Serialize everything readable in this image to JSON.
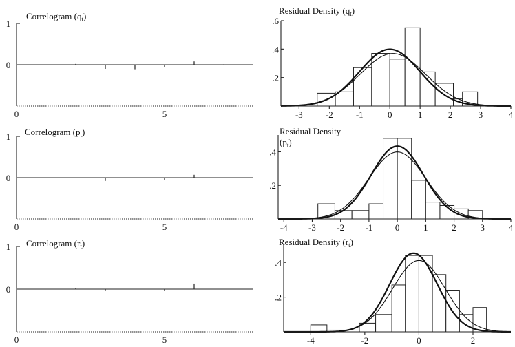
{
  "chart_data": [
    {
      "type": "bar",
      "title_main": "Correlogram (q",
      "title_sub": "t",
      "title_tail": ")",
      "xlim": [
        0,
        8
      ],
      "ylim": [
        -1,
        1
      ],
      "xticks": [
        "0",
        "5"
      ],
      "yticks": [
        "1",
        "0"
      ],
      "lags": [
        1,
        2,
        3,
        4,
        5,
        6,
        7,
        8
      ],
      "values": [
        0.0,
        0.02,
        -0.1,
        -0.11,
        -0.06,
        0.08,
        0.01,
        0.0
      ]
    },
    {
      "type": "line",
      "title_main": "Residual Density (q",
      "title_sub": "t",
      "title_tail": ")",
      "xlim": [
        -3.6,
        4
      ],
      "ylim": [
        0,
        0.6
      ],
      "xticks": [
        "-3",
        "-2",
        "-1",
        "0",
        "1",
        "2",
        "3",
        "4"
      ],
      "yticks": [
        ".6",
        ".4",
        ".2"
      ],
      "bins": [
        {
          "x0": -2.4,
          "x1": -1.8,
          "v": 0.09
        },
        {
          "x0": -1.8,
          "x1": -1.2,
          "v": 0.1
        },
        {
          "x0": -1.2,
          "x1": -0.6,
          "v": 0.27
        },
        {
          "x0": -0.6,
          "x1": 0.0,
          "v": 0.37
        },
        {
          "x0": 0.0,
          "x1": 0.5,
          "v": 0.33
        },
        {
          "x0": 0.5,
          "x1": 1.0,
          "v": 0.55
        },
        {
          "x0": 1.0,
          "x1": 1.5,
          "v": 0.24
        },
        {
          "x0": 1.5,
          "x1": 2.1,
          "v": 0.16
        },
        {
          "x0": 2.1,
          "x1": 2.4,
          "v": 0.05
        },
        {
          "x0": 2.4,
          "x1": 2.9,
          "v": 0.1
        }
      ],
      "curves": [
        {
          "mu": 0.0,
          "sigma": 1.0,
          "scale": 1.0
        },
        {
          "mu": 0.1,
          "sigma": 1.08,
          "scale": 1.0
        }
      ]
    },
    {
      "type": "bar",
      "title_main": "Correlogram (p",
      "title_sub": "t",
      "title_tail": ")",
      "xlim": [
        0,
        8
      ],
      "ylim": [
        -1,
        1
      ],
      "xticks": [
        "0",
        "5"
      ],
      "yticks": [
        "1",
        "0"
      ],
      "lags": [
        1,
        2,
        3,
        4,
        5,
        6,
        7,
        8
      ],
      "values": [
        0.0,
        0.0,
        -0.08,
        0.0,
        -0.06,
        0.07,
        0.0,
        0.0
      ]
    },
    {
      "type": "line",
      "title_main": "Residual Density",
      "title_line2_main": "(p",
      "title_sub": "t",
      "title_tail": ")",
      "xlim": [
        -4.2,
        4
      ],
      "ylim": [
        0,
        0.5
      ],
      "xticks": [
        "-4",
        "-3",
        "-2",
        "-1",
        "0",
        "1",
        "2",
        "3",
        "4"
      ],
      "yticks": [
        ".4",
        ".2"
      ],
      "bins": [
        {
          "x0": -2.8,
          "x1": -2.2,
          "v": 0.09
        },
        {
          "x0": -2.2,
          "x1": -1.6,
          "v": 0.05
        },
        {
          "x0": -1.6,
          "x1": -1.0,
          "v": 0.05
        },
        {
          "x0": -1.0,
          "x1": -0.5,
          "v": 0.09
        },
        {
          "x0": -0.5,
          "x1": 0.0,
          "v": 0.48
        },
        {
          "x0": 0.0,
          "x1": 0.5,
          "v": 0.48
        },
        {
          "x0": 0.5,
          "x1": 1.0,
          "v": 0.23
        },
        {
          "x0": 1.0,
          "x1": 1.5,
          "v": 0.1
        },
        {
          "x0": 1.5,
          "x1": 2.0,
          "v": 0.08
        },
        {
          "x0": 2.0,
          "x1": 2.5,
          "v": 0.06
        },
        {
          "x0": 2.5,
          "x1": 3.0,
          "v": 0.05
        }
      ],
      "curves": [
        {
          "mu": 0.0,
          "sigma": 0.92,
          "scale": 1.0
        },
        {
          "mu": 0.0,
          "sigma": 1.0,
          "scale": 1.0
        }
      ]
    },
    {
      "type": "bar",
      "title_main": "Correlogram (r",
      "title_sub": "t",
      "title_tail": ")",
      "xlim": [
        0,
        8
      ],
      "ylim": [
        -1,
        1
      ],
      "xticks": [
        "0",
        "5"
      ],
      "yticks": [
        "1",
        "0"
      ],
      "lags": [
        1,
        2,
        3,
        4,
        5,
        6,
        7,
        8
      ],
      "values": [
        0.0,
        0.03,
        -0.03,
        0.0,
        -0.04,
        0.13,
        0.0,
        0.0
      ]
    },
    {
      "type": "line",
      "title_main": "Residual Density (r",
      "title_sub": "t",
      "title_tail": ")",
      "xlim": [
        -5,
        3.4
      ],
      "ylim": [
        0,
        0.5
      ],
      "xticks": [
        "-4",
        "-2",
        "0",
        "2"
      ],
      "yticks": [
        ".4",
        ".2"
      ],
      "bins": [
        {
          "x0": -4.0,
          "x1": -3.4,
          "v": 0.04
        },
        {
          "x0": -3.4,
          "x1": -2.2,
          "v": 0.01
        },
        {
          "x0": -2.2,
          "x1": -1.6,
          "v": 0.05
        },
        {
          "x0": -1.6,
          "x1": -1.0,
          "v": 0.1
        },
        {
          "x0": -1.0,
          "x1": -0.5,
          "v": 0.27
        },
        {
          "x0": -0.5,
          "x1": 0.0,
          "v": 0.44
        },
        {
          "x0": 0.0,
          "x1": 0.5,
          "v": 0.44
        },
        {
          "x0": 0.5,
          "x1": 1.0,
          "v": 0.33
        },
        {
          "x0": 1.0,
          "x1": 1.5,
          "v": 0.24
        },
        {
          "x0": 1.5,
          "x1": 2.0,
          "v": 0.1
        },
        {
          "x0": 2.0,
          "x1": 2.5,
          "v": 0.14
        }
      ],
      "curves": [
        {
          "mu": -0.2,
          "sigma": 0.88,
          "scale": 1.0
        },
        {
          "mu": 0.0,
          "sigma": 0.97,
          "scale": 1.0
        }
      ]
    }
  ]
}
